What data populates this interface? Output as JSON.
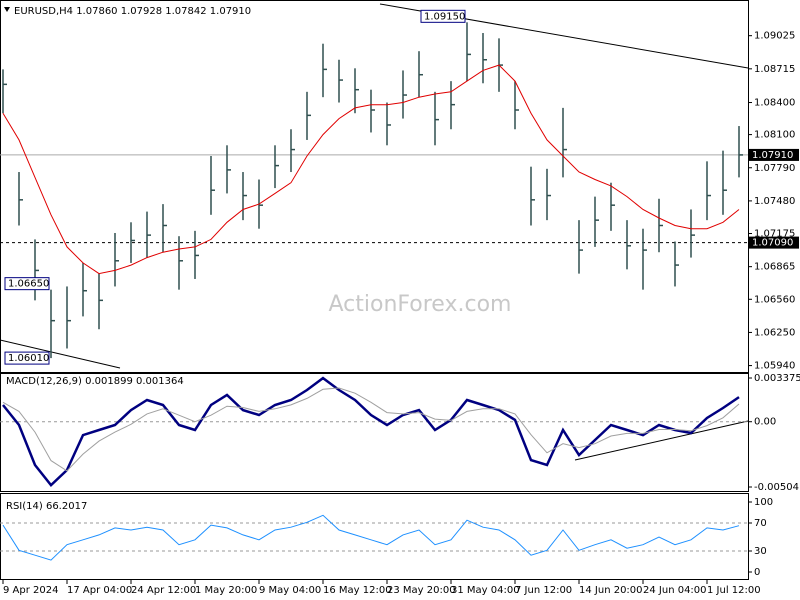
{
  "chart_data": [
    {
      "type": "hlc",
      "title": "EURUSD,H4  1.07860 1.07928 1.07842 1.07910",
      "watermark": "ActionForex.com",
      "categories": [
        "9 Apr 2024",
        null,
        null,
        null,
        "17 Apr 04:00",
        null,
        null,
        null,
        "24 Apr 12:00",
        null,
        null,
        null,
        "1 May 20:00",
        null,
        null,
        null,
        "9 May 04:00",
        null,
        null,
        null,
        "16 May 12:00",
        null,
        null,
        null,
        "23 May 20:00",
        null,
        null,
        null,
        "31 May 04:00",
        null,
        null,
        null,
        "7 Jun 12:00",
        null,
        null,
        null,
        "14 Jun 20:00",
        null,
        null,
        null,
        "24 Jun 04:00",
        null,
        null,
        null,
        "1 Jul 12:00",
        null,
        null
      ],
      "color": "#2f4f4f",
      "high": [
        1.0871,
        1.0775,
        1.0712,
        1.0665,
        1.0668,
        1.069,
        1.068,
        1.0718,
        1.0728,
        1.0738,
        1.0745,
        1.0715,
        1.072,
        1.079,
        1.08,
        1.0775,
        1.0768,
        1.08,
        1.0815,
        1.085,
        1.0895,
        1.088,
        1.0872,
        1.0852,
        1.084,
        1.087,
        1.0888,
        1.085,
        1.086,
        1.0915,
        1.0905,
        1.09,
        1.086,
        1.078,
        1.0778,
        1.0835,
        1.073,
        1.0752,
        1.0765,
        1.073,
        1.0722,
        1.075,
        1.071,
        1.074,
        1.0785,
        1.0795,
        1.0818
      ],
      "low": [
        1.083,
        1.0725,
        1.0655,
        1.0601,
        1.061,
        1.064,
        1.0628,
        1.0668,
        1.069,
        1.0695,
        1.07,
        1.0665,
        1.0675,
        1.0735,
        1.0755,
        1.073,
        1.0722,
        1.076,
        1.0775,
        1.0805,
        1.0845,
        1.084,
        1.083,
        1.0812,
        1.08,
        1.0825,
        1.0845,
        1.08,
        1.0815,
        1.086,
        1.0858,
        1.085,
        1.0815,
        1.0725,
        1.073,
        1.077,
        1.068,
        1.0705,
        1.072,
        1.0684,
        1.0665,
        1.07,
        1.0668,
        1.0695,
        1.073,
        1.0735,
        1.077
      ],
      "close": [
        1.0857,
        1.0749,
        1.0683,
        1.0636,
        1.0636,
        1.0664,
        1.0655,
        1.0692,
        1.0711,
        1.0716,
        1.0725,
        1.0692,
        1.0697,
        1.0758,
        1.0777,
        1.0753,
        1.0744,
        1.0781,
        1.0796,
        1.0828,
        1.0871,
        1.0861,
        1.0852,
        1.0833,
        1.0819,
        1.0847,
        1.0866,
        1.0824,
        1.0838,
        1.0885,
        1.088,
        1.0875,
        1.0833,
        1.0749,
        1.0753,
        1.0796,
        1.0702,
        1.073,
        1.0744,
        1.0706,
        1.0702,
        1.0725,
        1.0688,
        1.0716,
        1.0753,
        1.0758,
        1.0791
      ],
      "series": [
        {
          "color": "#e00000",
          "values": [
            1.083,
            1.0805,
            1.077,
            1.0735,
            1.0705,
            1.069,
            1.068,
            1.0683,
            1.0688,
            1.0695,
            1.07,
            1.0703,
            1.0705,
            1.0712,
            1.0728,
            1.074,
            1.0745,
            1.0755,
            1.0765,
            1.079,
            1.081,
            1.0825,
            1.0835,
            1.0838,
            1.0838,
            1.084,
            1.0845,
            1.0848,
            1.085,
            1.086,
            1.087,
            1.0875,
            1.086,
            1.083,
            1.0805,
            1.079,
            1.0775,
            1.0768,
            1.0762,
            1.0752,
            1.074,
            1.0732,
            1.0725,
            1.0722,
            1.0722,
            1.0728,
            1.074
          ]
        }
      ],
      "ylim": [
        1.0588,
        1.0934
      ],
      "yticks": [
        1.09025,
        1.08715,
        {
          "value": 1.084,
          "label": "1.08400"
        },
        {
          "value": 1.081,
          "label": "1.08100"
        },
        {
          "value": 1.0779,
          "label": "1.07790"
        },
        {
          "value": 1.0748,
          "label": "1.07480"
        },
        1.07175,
        1.06865,
        {
          "value": 1.0656,
          "label": "1.06560"
        },
        {
          "value": 1.0625,
          "label": "1.06250"
        },
        {
          "value": 1.0594,
          "label": "1.05940"
        }
      ],
      "price_lines": [
        {
          "value": 1.0791,
          "label": "1.07910",
          "dashed": false
        },
        {
          "value": 1.0709,
          "label": "1.07090",
          "dashed": true
        }
      ],
      "annotations": [
        {
          "text": "1.09150",
          "value": 1.0915
        },
        {
          "text": "1.06650",
          "value": 1.0665
        },
        {
          "text": "1.06010",
          "value": 1.0601
        }
      ]
    },
    {
      "type": "line",
      "title": "MACD(12,26,9) 0.001899 0.001364",
      "series": [
        {
          "color": "#000080",
          "values": [
            0.00129,
            -0.00025,
            -0.00334,
            -0.00489,
            -0.00373,
            -0.00103,
            -0.00064,
            -0.00025,
            0.0009,
            0.00168,
            0.00129,
            -0.00025,
            -0.00064,
            0.00129,
            0.00206,
            0.0009,
            0.00052,
            0.00129,
            0.00168,
            0.00245,
            0.00337,
            0.00245,
            0.00168,
            0.00052,
            -0.00025,
            0.00052,
            0.0009,
            -0.00064,
            0.00014,
            0.00168,
            0.00129,
            0.0009,
            0.00014,
            -0.00296,
            -0.00334,
            -0.00064,
            -0.00257,
            -0.00141,
            -0.00025,
            -0.00064,
            -0.00103,
            -0.00025,
            -0.00064,
            -0.00087,
            0.00029,
            0.00106,
            0.0019
          ]
        },
        {
          "color": "#a0a0a0",
          "values": [
            0.0015,
            0.0008,
            -0.0008,
            -0.003,
            -0.0038,
            -0.0025,
            -0.0015,
            -0.0008,
            -0.0002,
            0.0006,
            0.001,
            0.0005,
            0,
            0.0005,
            0.0012,
            0.0011,
            0.0008,
            0.001,
            0.0013,
            0.0018,
            0.0025,
            0.0026,
            0.0022,
            0.0015,
            0.0007,
            0.0006,
            0.0007,
            0.0002,
            0.0001,
            0.0008,
            0.001,
            0.001,
            0.0006,
            -0.001,
            -0.0024,
            -0.0017,
            -0.002,
            -0.0017,
            -0.0011,
            -0.0009,
            -0.0009,
            -0.0006,
            -0.0006,
            -0.0007,
            -0.0003,
            0.0003,
            0.001364
          ]
        }
      ],
      "ylim": [
        -0.00504,
        0.003375
      ],
      "yticks": [
        0.003375,
        {
          "value": 0,
          "label": "0.00"
        },
        -0.00504
      ],
      "dashed_levels": [
        0
      ]
    },
    {
      "type": "line",
      "title": "RSI(14) 66.2017",
      "series": [
        {
          "color": "#1e90ff",
          "values": [
            67,
            31,
            24,
            17,
            39,
            46,
            53,
            63,
            60,
            64,
            60,
            39,
            46,
            67,
            63,
            53,
            46,
            60,
            64,
            71,
            81,
            60,
            53,
            46,
            39,
            53,
            60,
            39,
            46,
            74,
            64,
            60,
            46,
            24,
            31,
            60,
            31,
            39,
            46,
            34,
            39,
            50,
            39,
            46,
            63,
            60,
            66.2
          ]
        }
      ],
      "ylim": [
        0,
        100
      ],
      "yticks": [
        100,
        70,
        30,
        0
      ],
      "dashed_levels": [
        70,
        30
      ]
    }
  ]
}
